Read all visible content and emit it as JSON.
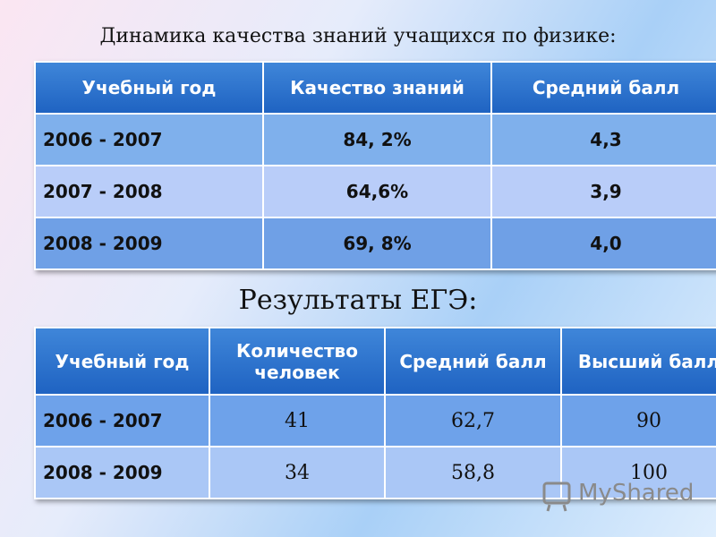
{
  "header": {
    "title": "Динамика качества знаний учащихся по физике:"
  },
  "table1": {
    "columns": [
      "Учебный год",
      "Качество знаний",
      "Средний балл"
    ],
    "rows": [
      [
        "2006 - 2007",
        "84, 2%",
        "4,3"
      ],
      [
        "2007 - 2008",
        "64,6%",
        "3,9"
      ],
      [
        "2008 - 2009",
        "69, 8%",
        "4,0"
      ]
    ]
  },
  "subtitle": "Результаты ЕГЭ:",
  "table2": {
    "columns": [
      "Учебный год",
      "Количество человек",
      "Средний балл",
      "Высший балл"
    ],
    "rows": [
      [
        "2006 - 2007",
        "41",
        "62,7",
        "90"
      ],
      [
        "2008 - 2009",
        "34",
        "58,8",
        "100"
      ]
    ]
  },
  "watermark": "MyShared"
}
